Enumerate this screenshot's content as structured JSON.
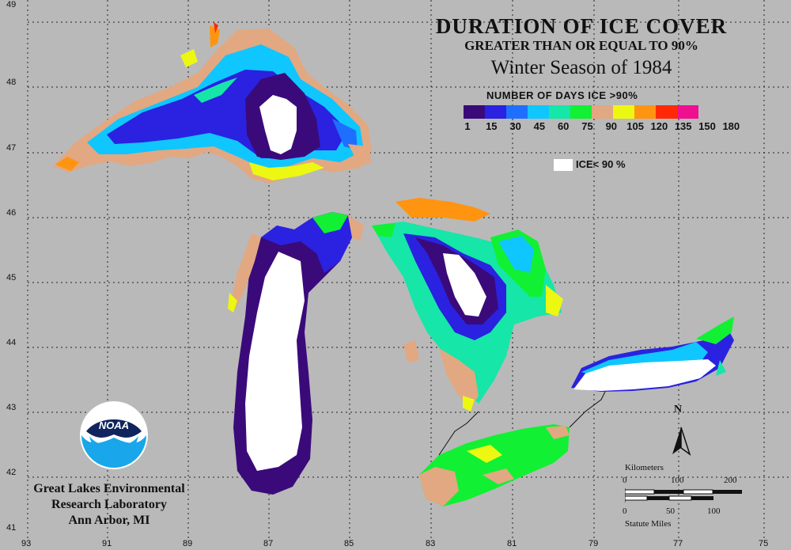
{
  "title": {
    "line1": "DURATION OF ICE COVER",
    "line2": "GREATER THAN OR EQUAL TO 90%",
    "line3": "Winter Season of 1984"
  },
  "legend": {
    "title": "NUMBER OF DAYS ICE >90%",
    "ticks": [
      "1",
      "15",
      "30",
      "45",
      "60",
      "75",
      "90",
      "105",
      "120",
      "135",
      "150",
      "180"
    ],
    "colors": [
      "#3a0a7a",
      "#2a22e0",
      "#1f6fff",
      "#10c6ff",
      "#16e6a8",
      "#12f034",
      "#e2a882",
      "#ecf812",
      "#ff9410",
      "#ff2a05",
      "#ee1090"
    ],
    "ice_label": "ICE< 90 %"
  },
  "axes": {
    "latitudes": [
      "49",
      "48",
      "47",
      "46",
      "45",
      "44",
      "43",
      "42",
      "41"
    ],
    "longitudes": [
      "93",
      "91",
      "89",
      "87",
      "85",
      "83",
      "81",
      "79",
      "77",
      "75"
    ]
  },
  "lab": {
    "line1": "Great Lakes Environmental",
    "line2": "Research Laboratory",
    "line3": "Ann Arbor, MI"
  },
  "logo": {
    "text": "NOAA"
  },
  "north_arrow": {
    "label": "N"
  },
  "scale": {
    "km_title": "Kilometers",
    "km_ticks": [
      "0",
      "100",
      "200"
    ],
    "mi_ticks": [
      "0",
      "50",
      "100"
    ],
    "mi_title": "Statute Miles"
  },
  "colors": {
    "background": "#b9b9b9",
    "ice_lt_90": "#ffffff",
    "grid": "#111111"
  }
}
